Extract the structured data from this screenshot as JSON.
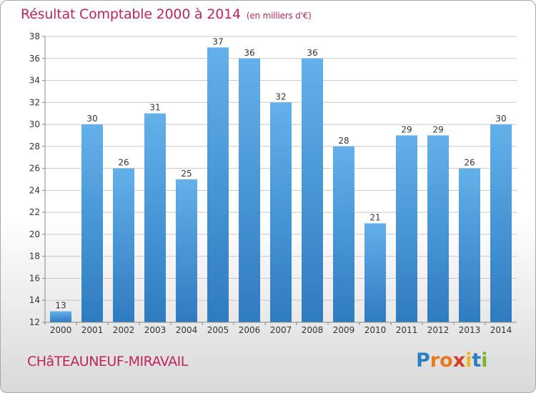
{
  "header": {
    "title": "Résultat Comptable 2000 à 2014",
    "unit": "(en milliers d'€)"
  },
  "footer": {
    "commune": "CHâTEAUNEUF-MIRAVAIL",
    "brand": "Proxiti",
    "brand_letter_colors": [
      "#2b7fc4",
      "#e8791e",
      "#e8791e",
      "#d93b2a",
      "#f2b41b",
      "#2b7fc4",
      "#7ab32e"
    ]
  },
  "colors": {
    "bar_light": "#63b0ea",
    "bar_dark": "#2f7bbf",
    "title": "#c0245e",
    "grid": "#c8c8c8"
  },
  "chart_data": {
    "type": "bar",
    "title": "Résultat Comptable 2000 à 2014",
    "xlabel": "",
    "ylabel": "",
    "categories": [
      "2000",
      "2001",
      "2002",
      "2003",
      "2004",
      "2005",
      "2006",
      "2007",
      "2008",
      "2009",
      "2010",
      "2011",
      "2012",
      "2013",
      "2014"
    ],
    "values": [
      13,
      30,
      26,
      31,
      25,
      37,
      36,
      32,
      36,
      28,
      21,
      29,
      29,
      26,
      30
    ],
    "ylim": [
      12,
      38
    ],
    "yticks": [
      12,
      14,
      16,
      18,
      20,
      22,
      24,
      26,
      28,
      30,
      32,
      34,
      36,
      38
    ],
    "grid": true
  }
}
